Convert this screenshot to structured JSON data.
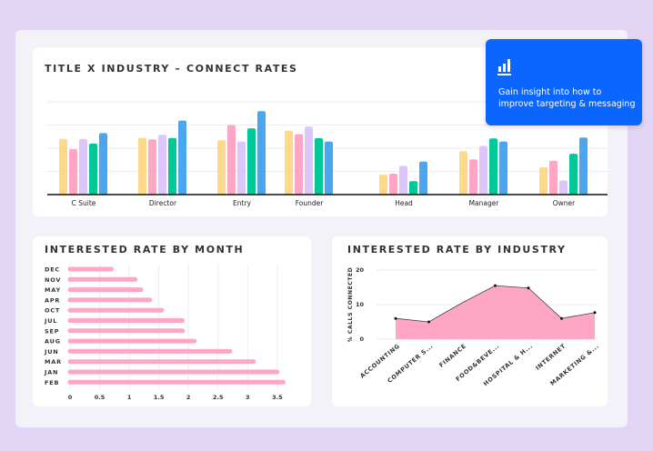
{
  "callout": {
    "icon": "bar-chart-icon",
    "line1": "Gain insight into how to",
    "line2": "improve targeting & messaging"
  },
  "chart_data": [
    {
      "type": "bar",
      "title": "TITLE X INDUSTRY – CONNECT RATES",
      "categories": [
        "C Suite",
        "Director",
        "Entry",
        "Founder",
        "Head",
        "Manager",
        "Owner"
      ],
      "colors": [
        "#ffd98a",
        "#ffa6c4",
        "#dcc6fb",
        "#00c896",
        "#4ba6f0"
      ],
      "series": [
        {
          "values": [
            2.4,
            2.44,
            2.35,
            2.76,
            0.86,
            1.87,
            1.18
          ]
        },
        {
          "values": [
            1.96,
            2.38,
            3.0,
            2.61,
            0.9,
            1.52,
            1.46
          ]
        },
        {
          "values": [
            2.4,
            2.58,
            2.29,
            2.93,
            1.24,
            2.1,
            0.61
          ]
        },
        {
          "values": [
            2.2,
            2.44,
            2.86,
            2.43,
            0.58,
            2.42,
            1.76
          ]
        },
        {
          "values": [
            2.65,
            3.19,
            3.6,
            2.29,
            1.42,
            2.29,
            2.46
          ]
        }
      ],
      "ylim": [
        0,
        4
      ],
      "grid": true
    },
    {
      "type": "bar",
      "orientation": "horizontal",
      "title": "INTERESTED RATE BY MONTH",
      "categories": [
        "DEC",
        "NOV",
        "MAY",
        "APR",
        "OCT",
        "JUL",
        "SEP",
        "AUG",
        "JUN",
        "MAR",
        "JAN",
        "FEB"
      ],
      "values": [
        0.7,
        1.1,
        1.2,
        1.35,
        1.55,
        1.9,
        1.9,
        2.1,
        2.7,
        3.1,
        3.5,
        3.6
      ],
      "xticks": [
        "0",
        "0.5",
        "1",
        "1.5",
        "2",
        "2.5",
        "3",
        "3.5"
      ],
      "xlim": [
        0,
        3.6
      ],
      "color": "#ffa6c4",
      "grid": true
    },
    {
      "type": "area",
      "title": "INTERESTED RATE BY INDUSTRY",
      "ylabel": "% CALLS CONNECTED",
      "categories": [
        "ACCOUNTING",
        "COMPUTER S...",
        "FINANCE",
        "FOOD&BEVE...",
        "HOSPITAL & H...",
        "INTERNET",
        "MARKETING &..."
      ],
      "values": [
        6,
        5,
        10.5,
        15.5,
        14.8,
        6,
        7.7
      ],
      "yticks": [
        "0",
        "10",
        "20"
      ],
      "ylim": [
        0,
        20
      ],
      "color": "#ffa6c4",
      "grid": true
    }
  ]
}
